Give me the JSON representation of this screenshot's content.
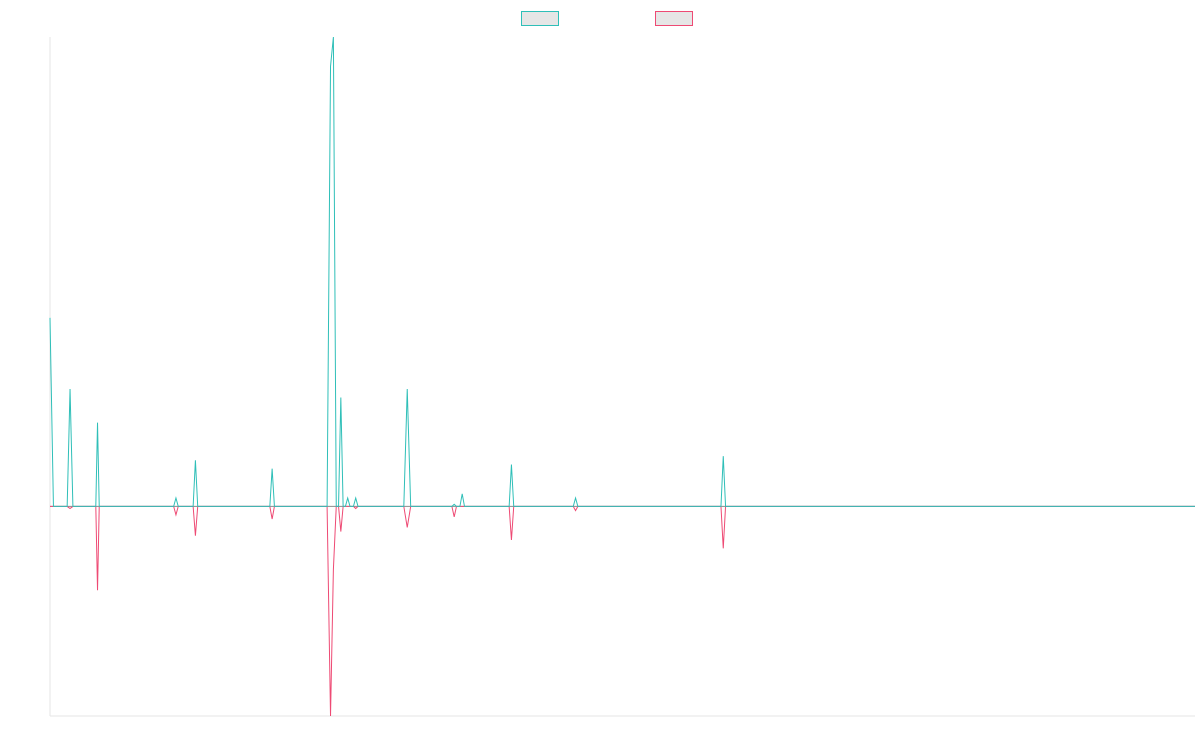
{
  "colors": {
    "series_up": "#2fbfb8",
    "series_down": "#ee4a74",
    "axis": "#e6e6e6",
    "baseline": "#8c8c8c"
  },
  "chart_data": {
    "type": "line",
    "title": "",
    "xlabel": "",
    "ylabel": "",
    "grid": false,
    "legend_position": "top-center",
    "xlim": [
      0,
      100
    ],
    "ylim": [
      -50,
      112
    ],
    "series": [
      {
        "name": "",
        "color": "#2fbfb8",
        "points": [
          [
            0,
            45
          ],
          [
            0.3,
            0
          ],
          [
            1.5,
            0
          ],
          [
            1.75,
            28
          ],
          [
            2,
            0
          ],
          [
            4,
            0
          ],
          [
            4.15,
            20
          ],
          [
            4.3,
            0
          ],
          [
            10.8,
            0
          ],
          [
            11,
            2
          ],
          [
            11.2,
            0
          ],
          [
            12.5,
            0
          ],
          [
            12.7,
            11
          ],
          [
            12.9,
            0
          ],
          [
            19.2,
            0
          ],
          [
            19.4,
            9
          ],
          [
            19.6,
            0
          ],
          [
            24.2,
            0
          ],
          [
            24.5,
            105
          ],
          [
            24.75,
            112
          ],
          [
            25,
            0
          ],
          [
            25.2,
            0
          ],
          [
            25.4,
            26
          ],
          [
            25.6,
            0
          ],
          [
            25.8,
            0
          ],
          [
            26,
            2
          ],
          [
            26.2,
            0
          ],
          [
            26.5,
            0
          ],
          [
            26.7,
            2
          ],
          [
            26.9,
            0
          ],
          [
            30.9,
            0
          ],
          [
            31.2,
            28
          ],
          [
            31.5,
            0
          ],
          [
            35.1,
            0
          ],
          [
            35.3,
            0.5
          ],
          [
            35.5,
            0
          ],
          [
            35.8,
            0
          ],
          [
            36,
            3
          ],
          [
            36.2,
            0
          ],
          [
            40.1,
            0
          ],
          [
            40.3,
            10
          ],
          [
            40.5,
            0
          ],
          [
            45.7,
            0
          ],
          [
            45.9,
            2
          ],
          [
            46.1,
            0
          ],
          [
            58.6,
            0
          ],
          [
            58.8,
            12
          ],
          [
            59,
            0
          ],
          [
            100,
            0
          ]
        ]
      },
      {
        "name": "",
        "color": "#ee4a74",
        "points": [
          [
            0,
            0
          ],
          [
            1.5,
            0
          ],
          [
            1.75,
            -0.5
          ],
          [
            2,
            0
          ],
          [
            4,
            0
          ],
          [
            4.15,
            -20
          ],
          [
            4.3,
            0
          ],
          [
            10.8,
            0
          ],
          [
            11,
            -2
          ],
          [
            11.2,
            0
          ],
          [
            12.5,
            0
          ],
          [
            12.7,
            -7
          ],
          [
            12.9,
            0
          ],
          [
            19.2,
            0
          ],
          [
            19.4,
            -3
          ],
          [
            19.6,
            0
          ],
          [
            24.2,
            0
          ],
          [
            24.5,
            -50
          ],
          [
            24.75,
            -15
          ],
          [
            25,
            0
          ],
          [
            25.2,
            0
          ],
          [
            25.4,
            -6
          ],
          [
            25.6,
            0
          ],
          [
            26.5,
            0
          ],
          [
            26.7,
            -0.5
          ],
          [
            26.9,
            0
          ],
          [
            30.9,
            0
          ],
          [
            31.2,
            -5
          ],
          [
            31.5,
            0
          ],
          [
            35.1,
            0
          ],
          [
            35.3,
            -2.5
          ],
          [
            35.5,
            0
          ],
          [
            40.1,
            0
          ],
          [
            40.3,
            -8
          ],
          [
            40.5,
            0
          ],
          [
            45.7,
            0
          ],
          [
            45.9,
            -1
          ],
          [
            46.1,
            0
          ],
          [
            58.6,
            0
          ],
          [
            58.8,
            -10
          ],
          [
            59,
            0
          ],
          [
            100,
            0
          ]
        ]
      }
    ]
  }
}
